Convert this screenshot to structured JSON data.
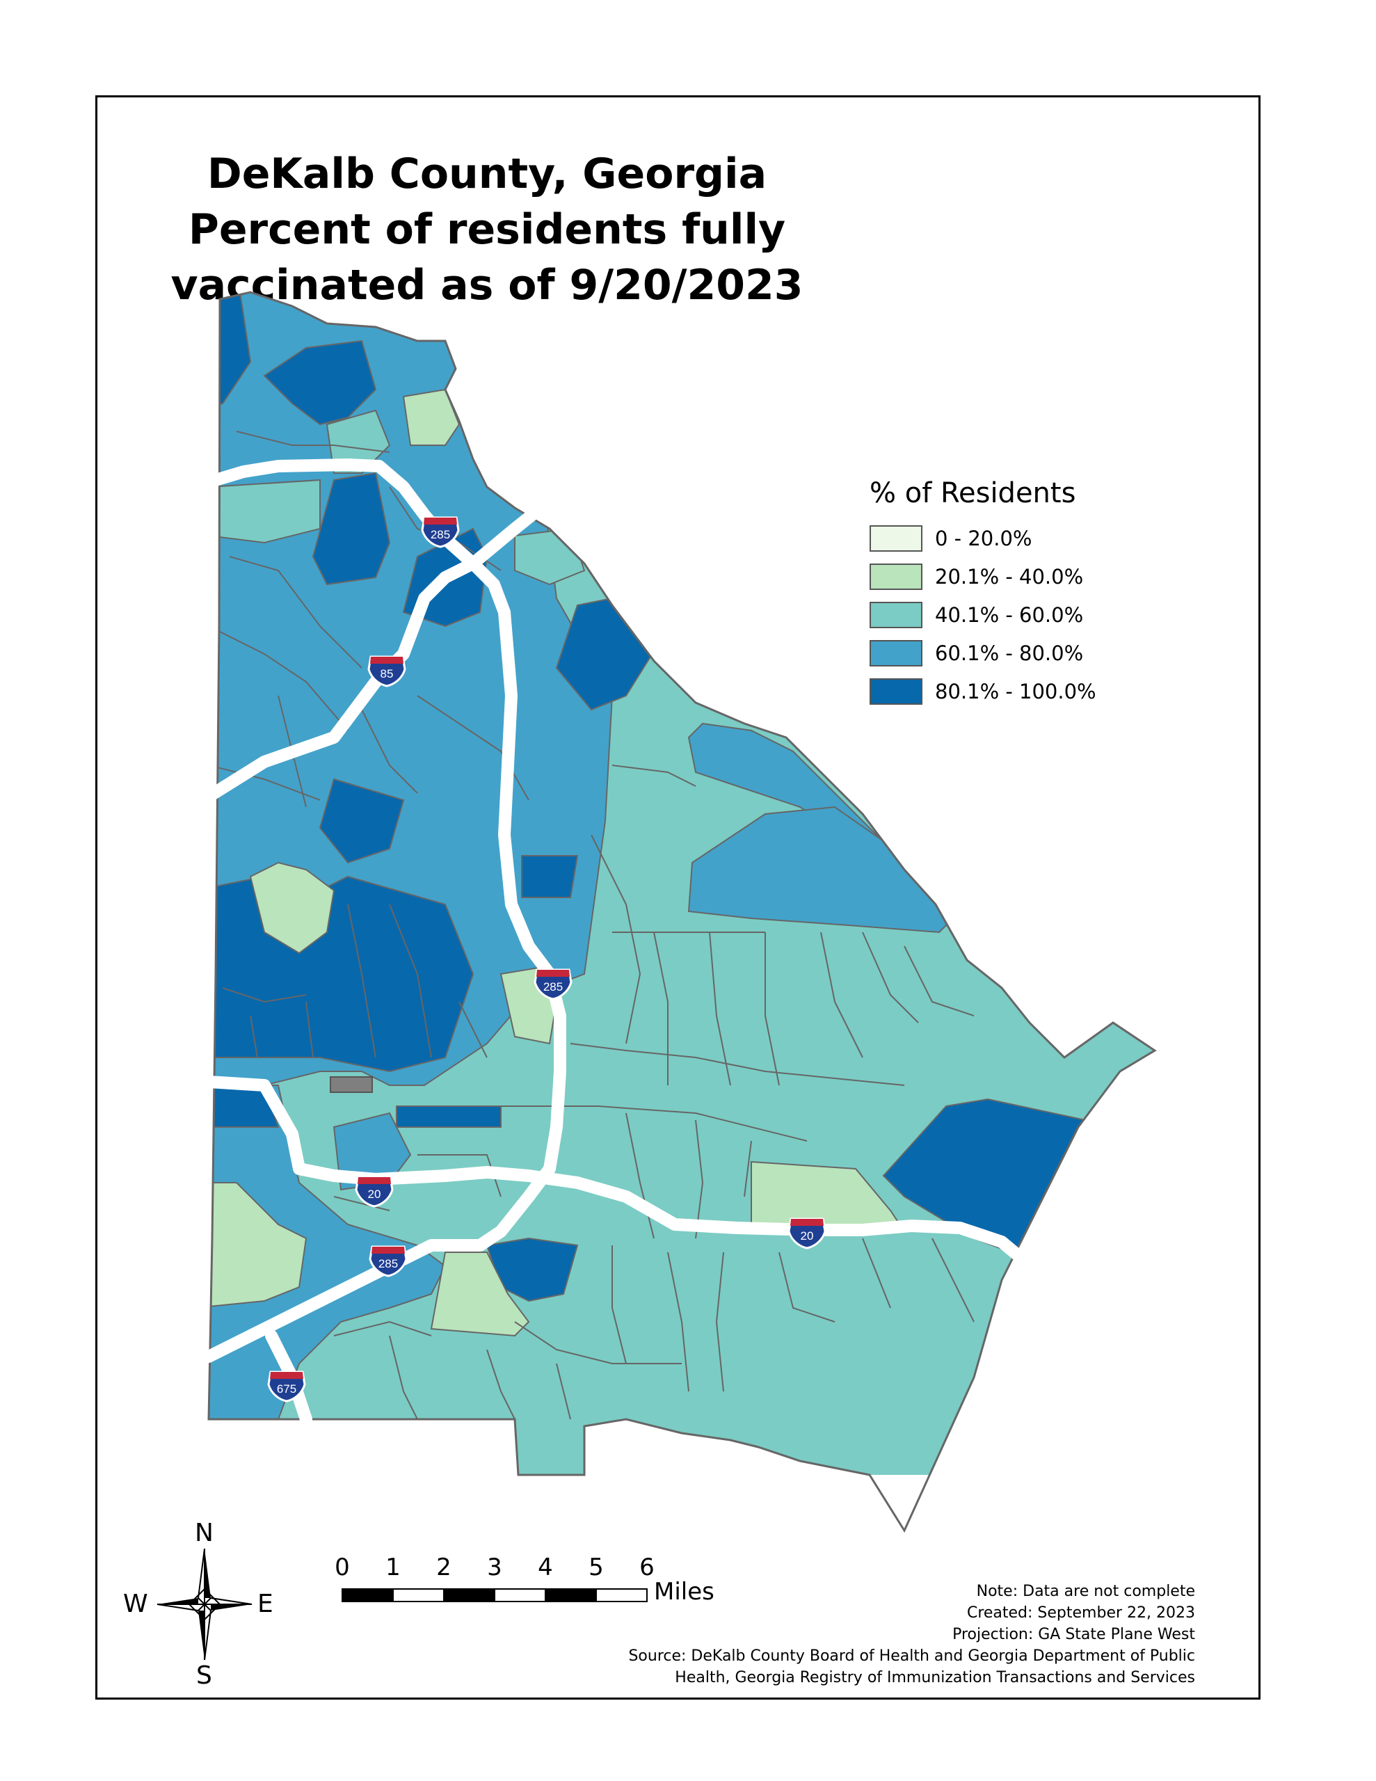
{
  "title": {
    "line1": "DeKalb County, Georgia",
    "line2": "Percent of residents fully",
    "line3": "vaccinated as of 9/20/2023"
  },
  "legend": {
    "title": "% of Residents",
    "items": [
      {
        "label": "0 - 20.0%",
        "color": "#edf8e9"
      },
      {
        "label": "20.1% - 40.0%",
        "color": "#bae4bc"
      },
      {
        "label": "40.1% - 60.0%",
        "color": "#7bccc4"
      },
      {
        "label": "60.1% - 80.0%",
        "color": "#43a2ca"
      },
      {
        "label": "80.1% - 100.0%",
        "color": "#0868ac"
      }
    ]
  },
  "highway_shields": [
    {
      "label": "285"
    },
    {
      "label": "85"
    },
    {
      "label": "285"
    },
    {
      "label": "20"
    },
    {
      "label": "20"
    },
    {
      "label": "285"
    },
    {
      "label": "675"
    }
  ],
  "scale_bar": {
    "ticks": [
      "0",
      "1",
      "2",
      "3",
      "4",
      "5",
      "6"
    ],
    "units": "Miles"
  },
  "compass": {
    "n": "N",
    "s": "S",
    "e": "E",
    "w": "W"
  },
  "notes": {
    "line1": "Note: Data are not complete",
    "line2": "Created: September 22, 2023",
    "line3": "Projection: GA State Plane West",
    "line4": "Source: DeKalb County Board of Health and Georgia Department of Public",
    "line5": "Health, Georgia Registry of Immunization Transactions and Services"
  }
}
